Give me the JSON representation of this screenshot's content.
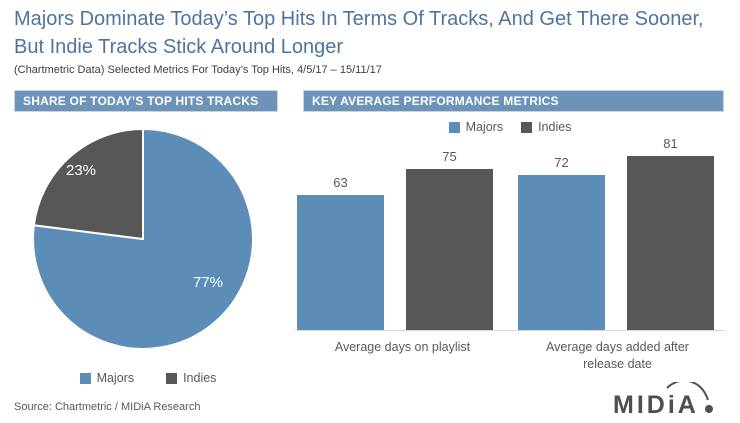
{
  "title": "Majors Dominate Today’s Top Hits In Terms Of Tracks, And Get There Sooner, But Indie Tracks Stick Around Longer",
  "subtitle": "(Chartmetric Data) Selected Metrics For Today’s Top Hits, 4/5/17 – 15/11/17",
  "left_panel": {
    "header": "SHARE OF TODAY’S TOP HITS TRACKS"
  },
  "right_panel": {
    "header": "KEY AVERAGE PERFORMANCE METRICS"
  },
  "colors": {
    "majors_blue": "#5b8db6",
    "indies_gray": "#575757",
    "header_bg": "#6d94b8",
    "title_text": "#4e74a0",
    "axis_text": "#595959",
    "baseline": "#d9d9d9",
    "logo_gray": "#4c4f54"
  },
  "footer": {
    "source": "Source: Chartmetric / MIDiA Research",
    "logo_text": "MIDiA"
  },
  "chart_data": [
    {
      "type": "pie",
      "title": "SHARE OF TODAY’S TOP HITS TRACKS",
      "labels": [
        "Majors",
        "Indies"
      ],
      "values": [
        77,
        23
      ],
      "value_labels": [
        "77%",
        "23%"
      ],
      "colors": [
        "#5b8db6",
        "#575757"
      ],
      "start_angle_deg": 0,
      "direction": "clockwise",
      "legend_position": "bottom"
    },
    {
      "type": "bar",
      "title": "KEY AVERAGE PERFORMANCE METRICS",
      "categories": [
        "Average days on playlist",
        "Average days added after release date"
      ],
      "series": [
        {
          "name": "Majors",
          "color": "#5b8db6",
          "values": [
            63,
            72
          ]
        },
        {
          "name": "Indies",
          "color": "#575757",
          "values": [
            75,
            81
          ]
        }
      ],
      "data_labels": true,
      "legend_position": "top",
      "ylim": [
        0,
        85
      ],
      "gridlines": false,
      "y_axis_visible": false
    }
  ]
}
